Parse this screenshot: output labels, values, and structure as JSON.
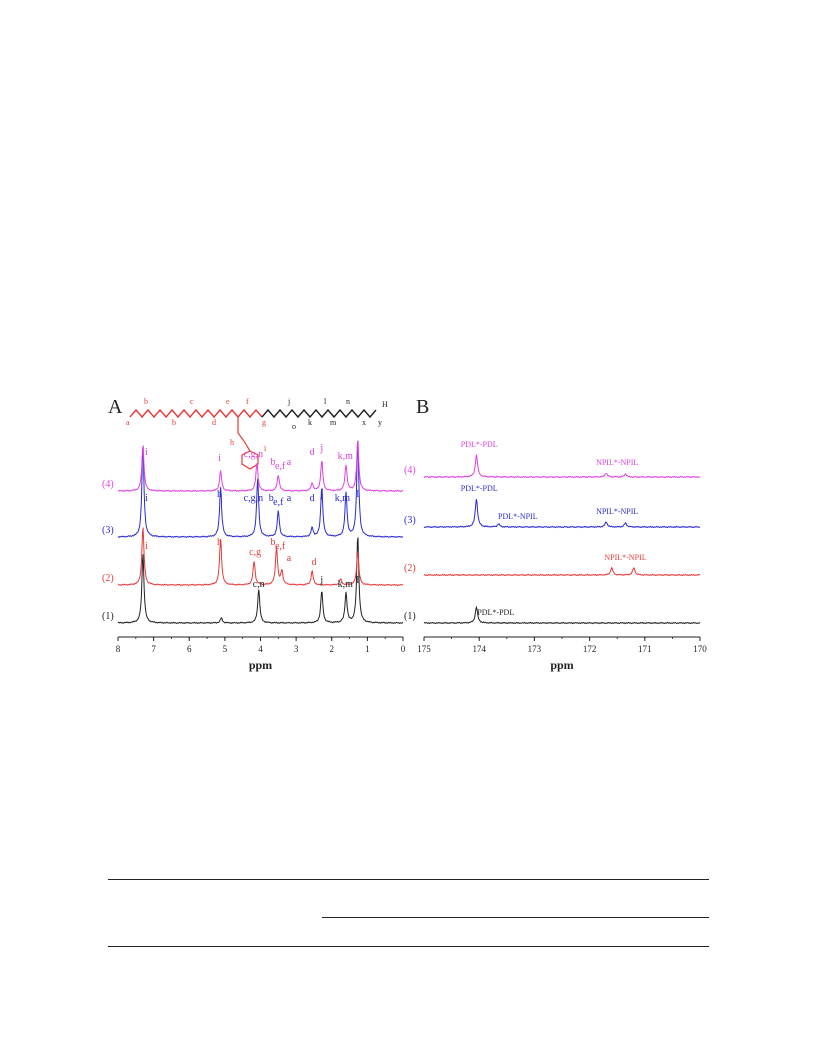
{
  "colors": {
    "trace1": "#222222",
    "trace2": "#e83a3a",
    "trace3": "#2a2ad6",
    "trace4": "#e040e0",
    "axis": "#222222"
  },
  "chart_data": [
    {
      "panel_label": "A",
      "type": "line",
      "xlabel": "ppm",
      "xlim": [
        8,
        0
      ],
      "x_reversed": true,
      "xticks": [
        8,
        7,
        6,
        5,
        4,
        3,
        2,
        1,
        0
      ],
      "structure_labels": [
        "a",
        "b",
        "b",
        "c",
        "d",
        "e",
        "f",
        "g",
        "h",
        "i",
        "j",
        "k",
        "l",
        "m",
        "n",
        "o",
        "x",
        "y",
        "H"
      ],
      "series": [
        {
          "name": "(1)",
          "color": "#222222",
          "peaks": [
            {
              "ppm": 7.3,
              "height": 70
            },
            {
              "ppm": 5.1,
              "height": 5
            },
            {
              "ppm": 4.05,
              "height": 34
            },
            {
              "ppm": 2.28,
              "height": 32
            },
            {
              "ppm": 1.6,
              "height": 30
            },
            {
              "ppm": 1.27,
              "height": 88
            }
          ],
          "peak_labels": [
            {
              "ppm": 4.05,
              "text": "c,n"
            },
            {
              "ppm": 2.28,
              "text": "j"
            },
            {
              "ppm": 1.62,
              "text": "k,m"
            },
            {
              "ppm": 1.27,
              "text": "l"
            }
          ]
        },
        {
          "name": "(2)",
          "color": "#e83a3a",
          "peaks": [
            {
              "ppm": 7.3,
              "height": 58
            },
            {
              "ppm": 5.12,
              "height": 46
            },
            {
              "ppm": 4.18,
              "height": 24
            },
            {
              "ppm": 3.55,
              "height": 38
            },
            {
              "ppm": 3.4,
              "height": 14
            },
            {
              "ppm": 2.55,
              "height": 14
            },
            {
              "ppm": 1.75,
              "height": 6
            },
            {
              "ppm": 1.27,
              "height": 34
            }
          ],
          "peak_labels": [
            {
              "ppm": 7.2,
              "text": "i"
            },
            {
              "ppm": 5.15,
              "text": "h"
            },
            {
              "ppm": 4.15,
              "text": "c,g"
            },
            {
              "ppm": 3.65,
              "text": "b"
            },
            {
              "ppm": 3.45,
              "text": "e,f"
            },
            {
              "ppm": 3.2,
              "text": "a"
            },
            {
              "ppm": 2.5,
              "text": "d"
            }
          ]
        },
        {
          "name": "(3)",
          "color": "#2a2ad6",
          "peaks": [
            {
              "ppm": 7.3,
              "height": 92
            },
            {
              "ppm": 5.12,
              "height": 50
            },
            {
              "ppm": 4.08,
              "height": 58
            },
            {
              "ppm": 3.5,
              "height": 26
            },
            {
              "ppm": 2.55,
              "height": 9
            },
            {
              "ppm": 2.28,
              "height": 50
            },
            {
              "ppm": 1.6,
              "height": 44
            },
            {
              "ppm": 1.27,
              "height": 98
            }
          ],
          "peak_labels": [
            {
              "ppm": 7.2,
              "text": "i"
            },
            {
              "ppm": 5.15,
              "text": "h"
            },
            {
              "ppm": 4.2,
              "text": "c,g,n"
            },
            {
              "ppm": 3.7,
              "text": "b"
            },
            {
              "ppm": 3.5,
              "text": "e,f"
            },
            {
              "ppm": 3.2,
              "text": "a"
            },
            {
              "ppm": 2.55,
              "text": "d"
            },
            {
              "ppm": 2.28,
              "text": "j"
            },
            {
              "ppm": 1.7,
              "text": "k,m"
            },
            {
              "ppm": 1.27,
              "text": "l"
            }
          ]
        },
        {
          "name": "(4)",
          "color": "#e040e0",
          "peaks": [
            {
              "ppm": 7.3,
              "height": 46
            },
            {
              "ppm": 5.12,
              "height": 20
            },
            {
              "ppm": 4.1,
              "height": 28
            },
            {
              "ppm": 3.5,
              "height": 16
            },
            {
              "ppm": 2.55,
              "height": 8
            },
            {
              "ppm": 2.28,
              "height": 30
            },
            {
              "ppm": 1.6,
              "height": 26
            },
            {
              "ppm": 1.27,
              "height": 50
            }
          ],
          "peak_labels": [
            {
              "ppm": 7.2,
              "text": "i"
            },
            {
              "ppm": 5.15,
              "text": "i"
            },
            {
              "ppm": 4.2,
              "text": "c,g,n"
            },
            {
              "ppm": 3.65,
              "text": "b"
            },
            {
              "ppm": 3.45,
              "text": "e,f"
            },
            {
              "ppm": 3.2,
              "text": "a"
            },
            {
              "ppm": 2.55,
              "text": "d"
            },
            {
              "ppm": 2.28,
              "text": "j"
            },
            {
              "ppm": 1.62,
              "text": "k,m"
            },
            {
              "ppm": 1.27,
              "text": "l"
            }
          ]
        }
      ]
    },
    {
      "panel_label": "B",
      "type": "line",
      "xlabel": "ppm",
      "xlim": [
        175,
        170
      ],
      "x_reversed": true,
      "xticks": [
        175,
        174,
        173,
        172,
        171,
        170
      ],
      "series": [
        {
          "name": "(1)",
          "color": "#222222",
          "peaks": [
            {
              "ppm": 174.05,
              "height": 16
            }
          ],
          "peak_labels": [
            {
              "ppm": 173.7,
              "text": "PDL*-PDL"
            }
          ]
        },
        {
          "name": "(2)",
          "color": "#e83a3a",
          "peaks": [
            {
              "ppm": 171.6,
              "height": 7
            },
            {
              "ppm": 171.2,
              "height": 7
            }
          ],
          "peak_labels": [
            {
              "ppm": 171.35,
              "text": "NPIL*-NPIL"
            }
          ]
        },
        {
          "name": "(3)",
          "color": "#2a2ad6",
          "peaks": [
            {
              "ppm": 174.05,
              "height": 28
            },
            {
              "ppm": 173.65,
              "height": 3
            },
            {
              "ppm": 171.7,
              "height": 5
            },
            {
              "ppm": 171.35,
              "height": 4
            }
          ],
          "peak_labels": [
            {
              "ppm": 174.0,
              "text": "PDL*-PDL"
            },
            {
              "ppm": 173.3,
              "text": "PDL*-NPIL"
            },
            {
              "ppm": 171.5,
              "text": "NPIL*-NPIL"
            }
          ]
        },
        {
          "name": "(4)",
          "color": "#e040e0",
          "peaks": [
            {
              "ppm": 174.05,
              "height": 22
            },
            {
              "ppm": 171.7,
              "height": 4
            },
            {
              "ppm": 171.35,
              "height": 3
            }
          ],
          "peak_labels": [
            {
              "ppm": 174.0,
              "text": "PDL*-PDL"
            },
            {
              "ppm": 171.5,
              "text": "NPIL*-NPIL"
            }
          ]
        }
      ]
    }
  ]
}
